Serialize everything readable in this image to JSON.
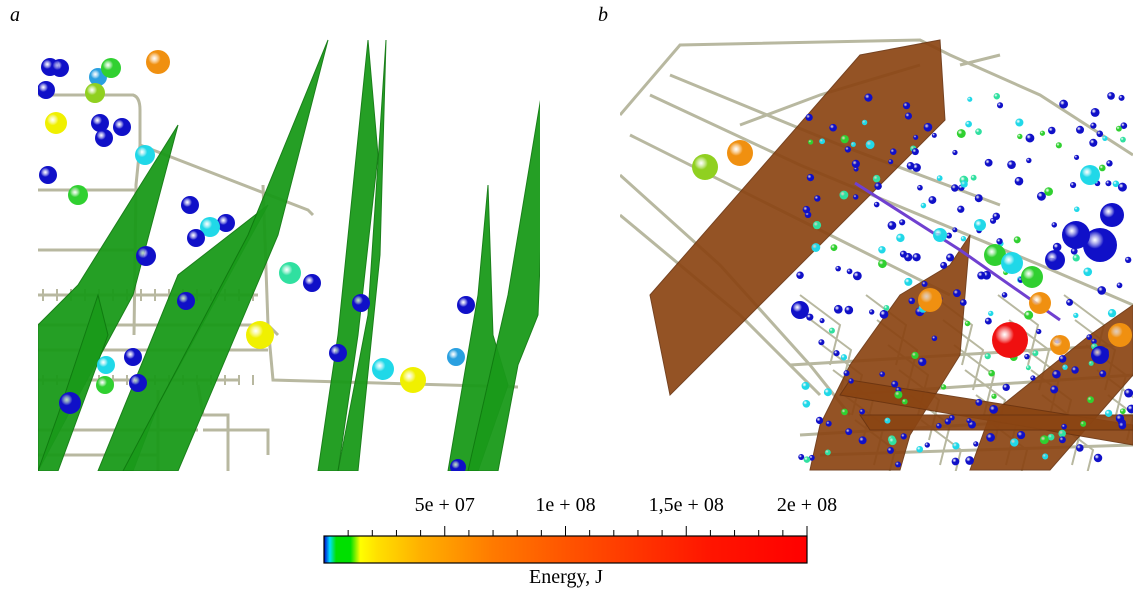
{
  "panels": [
    {
      "label": "a"
    },
    {
      "label": "b"
    }
  ],
  "colorbar": {
    "title": "Energy, J",
    "range": [
      0,
      200000000
    ],
    "ticks": [
      {
        "value": 50000000,
        "label": "5e + 07"
      },
      {
        "value": 100000000,
        "label": "1e + 08"
      },
      {
        "value": 150000000,
        "label": "1,5e + 08"
      },
      {
        "value": 200000000,
        "label": "2e + 08"
      }
    ],
    "minor_tick_step": 10000000,
    "colors": [
      "#0000c8",
      "#00e0ff",
      "#00e000",
      "#ffff00",
      "#ffc000",
      "#ff9000",
      "#ff6000",
      "#ff3000",
      "#ff0000"
    ]
  },
  "colors": {
    "tunnels": "#b8b8a0",
    "fault_planes_a": "#1a9a1a",
    "fault_planes_b": "#8b4513"
  }
}
